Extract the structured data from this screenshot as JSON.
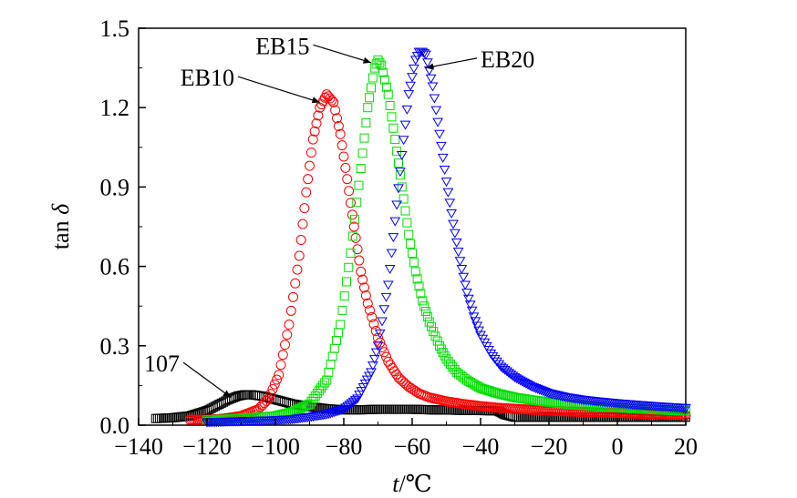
{
  "chart_data": {
    "type": "scatter",
    "title": "",
    "xlabel": "t/℃",
    "ylabel": "tan δ",
    "xlim": [
      -140,
      20
    ],
    "ylim": [
      0.0,
      1.5
    ],
    "x_ticks": [
      -140,
      -120,
      -100,
      -80,
      -60,
      -40,
      -20,
      0,
      20
    ],
    "x_tick_labels": [
      "−140",
      "−120",
      "−100",
      "−80",
      "−60",
      "−40",
      "−20",
      "0",
      "20"
    ],
    "y_ticks": [
      0.0,
      0.3,
      0.6,
      0.9,
      1.2,
      1.5
    ],
    "y_tick_labels": [
      "0.0",
      "0.3",
      "0.6",
      "0.9",
      "1.2",
      "1.5"
    ],
    "grid": false,
    "legend": "none",
    "series": [
      {
        "name": "107",
        "marker": "square",
        "color": "#000000",
        "x": [
          -135,
          -130,
          -125,
          -120,
          -117,
          -114,
          -111,
          -109,
          -107,
          -104,
          -101,
          -98,
          -95,
          -90,
          -85,
          -80,
          -75,
          -70,
          -65,
          -60,
          -55,
          -50,
          -45,
          -40,
          -35,
          -33,
          -30,
          -25,
          -20,
          -15,
          -10,
          -5,
          0,
          5,
          10,
          15,
          20
        ],
        "y": [
          0.025,
          0.028,
          0.035,
          0.055,
          0.075,
          0.095,
          0.11,
          0.115,
          0.115,
          0.11,
          0.1,
          0.09,
          0.08,
          0.07,
          0.062,
          0.058,
          0.058,
          0.06,
          0.06,
          0.06,
          0.058,
          0.057,
          0.056,
          0.055,
          0.054,
          0.04,
          0.03,
          0.03,
          0.03,
          0.03,
          0.03,
          0.03,
          0.03,
          0.03,
          0.03,
          0.03,
          0.03
        ]
      },
      {
        "name": "EB10",
        "marker": "circle",
        "color": "#ff0000",
        "x": [
          -125,
          -120,
          -115,
          -110,
          -105,
          -102,
          -99,
          -96,
          -93,
          -91,
          -89,
          -87,
          -85,
          -83,
          -81,
          -79,
          -77,
          -75,
          -73,
          -70,
          -67,
          -64,
          -61,
          -58,
          -55,
          -50,
          -45,
          -40,
          -35,
          -30,
          -25,
          -20,
          -15,
          -10,
          -5,
          0,
          5,
          10,
          15,
          20
        ],
        "y": [
          0.02,
          0.02,
          0.025,
          0.035,
          0.06,
          0.1,
          0.19,
          0.38,
          0.64,
          0.88,
          1.08,
          1.2,
          1.25,
          1.22,
          1.1,
          0.93,
          0.75,
          0.58,
          0.46,
          0.33,
          0.24,
          0.18,
          0.145,
          0.12,
          0.105,
          0.09,
          0.08,
          0.072,
          0.066,
          0.062,
          0.058,
          0.055,
          0.052,
          0.05,
          0.048,
          0.046,
          0.044,
          0.042,
          0.04,
          0.038
        ]
      },
      {
        "name": "EB15",
        "marker": "square",
        "color": "#00dd00",
        "x": [
          -120,
          -115,
          -110,
          -105,
          -100,
          -95,
          -90,
          -85,
          -81,
          -78,
          -75,
          -73,
          -71,
          -70,
          -69,
          -67,
          -65,
          -63,
          -61,
          -59,
          -57,
          -55,
          -52,
          -50,
          -47,
          -44,
          -40,
          -35,
          -30,
          -25,
          -20,
          -15,
          -10,
          -5,
          0,
          5,
          10,
          15,
          20
        ],
        "y": [
          0.02,
          0.022,
          0.026,
          0.03,
          0.035,
          0.05,
          0.08,
          0.17,
          0.38,
          0.65,
          0.97,
          1.2,
          1.35,
          1.38,
          1.36,
          1.25,
          1.08,
          0.9,
          0.72,
          0.58,
          0.47,
          0.39,
          0.3,
          0.25,
          0.2,
          0.17,
          0.14,
          0.12,
          0.105,
          0.095,
          0.087,
          0.08,
          0.075,
          0.07,
          0.066,
          0.062,
          0.059,
          0.056,
          0.053
        ]
      },
      {
        "name": "EB20",
        "marker": "triangle-down",
        "color": "#0000ff",
        "x": [
          -120,
          -115,
          -110,
          -105,
          -100,
          -95,
          -90,
          -85,
          -80,
          -76,
          -72,
          -70,
          -67,
          -65,
          -63,
          -61,
          -59,
          -58,
          -57,
          -56,
          -54,
          -52,
          -50,
          -48,
          -46,
          -44,
          -42,
          -40,
          -37,
          -34,
          -30,
          -25,
          -20,
          -15,
          -10,
          -5,
          0,
          5,
          10,
          15,
          20
        ],
        "y": [
          0.01,
          0.012,
          0.014,
          0.016,
          0.018,
          0.022,
          0.03,
          0.04,
          0.06,
          0.1,
          0.2,
          0.3,
          0.53,
          0.77,
          1.02,
          1.25,
          1.38,
          1.41,
          1.41,
          1.4,
          1.28,
          1.1,
          0.92,
          0.76,
          0.62,
          0.5,
          0.41,
          0.34,
          0.27,
          0.22,
          0.18,
          0.145,
          0.12,
          0.105,
          0.095,
          0.088,
          0.082,
          0.077,
          0.072,
          0.068,
          0.064
        ]
      }
    ],
    "annotations": [
      {
        "text": "107",
        "series": "107",
        "x": -113,
        "y": 0.105,
        "label_x": -128,
        "label_y": 0.23
      },
      {
        "text": "EB10",
        "series": "EB10",
        "x": -87,
        "y": 1.22,
        "label_x": -112,
        "label_y": 1.31
      },
      {
        "text": "EB15",
        "series": "EB15",
        "x": -72,
        "y": 1.37,
        "label_x": -90,
        "label_y": 1.43
      },
      {
        "text": "EB20",
        "series": "EB20",
        "x": -56,
        "y": 1.35,
        "label_x": -40,
        "label_y": 1.38
      }
    ]
  }
}
